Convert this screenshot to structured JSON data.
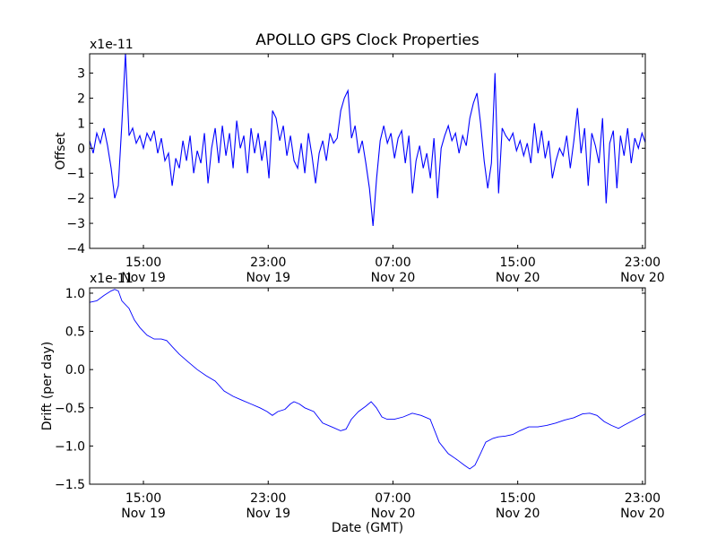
{
  "chart_data": [
    {
      "type": "line",
      "title": "APOLLO GPS Clock Properties",
      "ylabel": "Offset",
      "xlabel": "",
      "multiplier": "x1e-11",
      "xlim_hours_from_nov19_0000": [
        11.55,
        47.18
      ],
      "ylim": [
        -4,
        3.77
      ],
      "yticks": [
        3,
        2,
        1,
        0,
        -1,
        -2,
        -3,
        -4
      ],
      "ytick_labels": [
        "3",
        "2",
        "1",
        "0",
        "−1",
        "−2",
        "−3",
        "−4"
      ],
      "xticks_hours": [
        15,
        23,
        31,
        39,
        47
      ],
      "xtick_labels": [
        [
          "15:00",
          "Nov 19"
        ],
        [
          "23:00",
          "Nov 19"
        ],
        [
          "07:00",
          "Nov 20"
        ],
        [
          "15:00",
          "Nov 20"
        ],
        [
          "23:00",
          "Nov 20"
        ]
      ],
      "series_color": "#0000ff",
      "t_start_hours": 11.55,
      "t_step_hours": 0.23,
      "values": [
        0.3,
        -0.2,
        0.6,
        0.2,
        0.8,
        0.1,
        -0.8,
        -2.0,
        -1.5,
        1.0,
        3.8,
        0.5,
        0.8,
        0.2,
        0.5,
        0.0,
        0.6,
        0.3,
        0.7,
        -0.2,
        0.4,
        -0.5,
        -0.2,
        -1.5,
        -0.4,
        -0.8,
        0.3,
        -0.5,
        0.5,
        -1.0,
        -0.1,
        -0.6,
        0.6,
        -1.4,
        0.0,
        0.8,
        -0.6,
        0.9,
        -0.3,
        0.6,
        -0.8,
        1.1,
        0.0,
        0.5,
        -1.0,
        0.8,
        -0.2,
        0.6,
        -0.5,
        0.3,
        -1.2,
        1.5,
        1.2,
        0.3,
        0.9,
        -0.3,
        0.5,
        -0.5,
        -0.8,
        0.2,
        -1.0,
        0.6,
        -0.3,
        -1.4,
        -0.2,
        0.3,
        -0.5,
        0.6,
        0.2,
        0.4,
        1.5,
        2.0,
        2.3,
        0.4,
        0.9,
        -0.2,
        0.3,
        -0.6,
        -1.6,
        -3.1,
        -1.2,
        0.3,
        0.9,
        0.2,
        0.6,
        -0.4,
        0.4,
        0.7,
        -0.6,
        0.5,
        -1.8,
        -0.5,
        0.1,
        -0.8,
        -0.2,
        -1.2,
        0.4,
        -2.0,
        0.0,
        0.5,
        0.9,
        0.3,
        0.6,
        -0.2,
        0.5,
        0.1,
        1.2,
        1.8,
        2.2,
        1.0,
        -0.5,
        -1.6,
        -0.6,
        3.0,
        -1.8,
        0.8,
        0.5,
        0.3,
        0.6,
        -0.1,
        0.3,
        -0.3,
        0.2,
        -0.6,
        1.0,
        -0.2,
        0.7,
        -0.4,
        0.3,
        -1.2,
        -0.5,
        0.0,
        -0.3,
        0.5,
        -0.8,
        0.3,
        1.6,
        -0.2,
        0.8,
        -1.5,
        0.6,
        0.1,
        -0.6,
        1.2,
        -2.2,
        0.2,
        0.7,
        -1.6,
        0.5,
        -0.3,
        0.8,
        -0.6,
        0.4,
        0.0,
        0.6,
        0.2
      ]
    },
    {
      "type": "line",
      "title": "",
      "ylabel": "Drift (per day)",
      "xlabel": "Date (GMT)",
      "multiplier": "x1e-11",
      "xlim_hours_from_nov19_0000": [
        11.55,
        47.18
      ],
      "ylim": [
        -1.5,
        1.07
      ],
      "yticks": [
        1.0,
        0.5,
        0.0,
        -0.5,
        -1.0,
        -1.5
      ],
      "ytick_labels": [
        "1.0",
        "0.5",
        "0.0",
        "−0.5",
        "−1.0",
        "−1.5"
      ],
      "xticks_hours": [
        15,
        23,
        31,
        39,
        47
      ],
      "xtick_labels": [
        [
          "15:00",
          "Nov 19"
        ],
        [
          "23:00",
          "Nov 19"
        ],
        [
          "07:00",
          "Nov 20"
        ],
        [
          "15:00",
          "Nov 20"
        ],
        [
          "23:00",
          "Nov 20"
        ]
      ],
      "series_color": "#0000ff",
      "x": [
        11.55,
        12.01,
        12.47,
        12.93,
        13.16,
        13.39,
        13.62,
        14.08,
        14.42,
        14.77,
        15.23,
        15.69,
        16.15,
        16.49,
        16.84,
        17.3,
        17.87,
        18.45,
        19.02,
        19.6,
        20.17,
        20.75,
        21.32,
        21.89,
        22.47,
        22.93,
        23.27,
        23.62,
        24.08,
        24.42,
        24.65,
        25.0,
        25.34,
        25.92,
        26.49,
        27.07,
        27.64,
        27.99,
        28.33,
        28.79,
        29.25,
        29.6,
        29.94,
        30.29,
        30.63,
        31.09,
        31.66,
        32.24,
        32.81,
        33.39,
        33.96,
        34.54,
        35.11,
        35.57,
        35.92,
        36.26,
        36.61,
        36.95,
        37.41,
        37.76,
        38.22,
        38.68,
        39.14,
        39.71,
        40.29,
        40.86,
        41.44,
        42.01,
        42.59,
        43.16,
        43.62,
        44.08,
        44.54,
        45.0,
        45.46,
        45.8,
        46.26,
        46.72,
        47.18
      ],
      "values": [
        0.88,
        0.9,
        0.97,
        1.03,
        1.05,
        1.03,
        0.9,
        0.8,
        0.65,
        0.55,
        0.45,
        0.4,
        0.4,
        0.38,
        0.3,
        0.2,
        0.1,
        0.0,
        -0.08,
        -0.15,
        -0.28,
        -0.35,
        -0.4,
        -0.45,
        -0.5,
        -0.55,
        -0.6,
        -0.55,
        -0.52,
        -0.45,
        -0.42,
        -0.45,
        -0.5,
        -0.55,
        -0.7,
        -0.75,
        -0.8,
        -0.78,
        -0.65,
        -0.55,
        -0.48,
        -0.42,
        -0.5,
        -0.62,
        -0.65,
        -0.65,
        -0.62,
        -0.57,
        -0.6,
        -0.65,
        -0.95,
        -1.1,
        -1.18,
        -1.25,
        -1.3,
        -1.25,
        -1.1,
        -0.95,
        -0.9,
        -0.88,
        -0.87,
        -0.85,
        -0.8,
        -0.75,
        -0.75,
        -0.73,
        -0.7,
        -0.66,
        -0.63,
        -0.58,
        -0.57,
        -0.6,
        -0.68,
        -0.73,
        -0.77,
        -0.73,
        -0.68,
        -0.63,
        -0.58
      ]
    }
  ]
}
